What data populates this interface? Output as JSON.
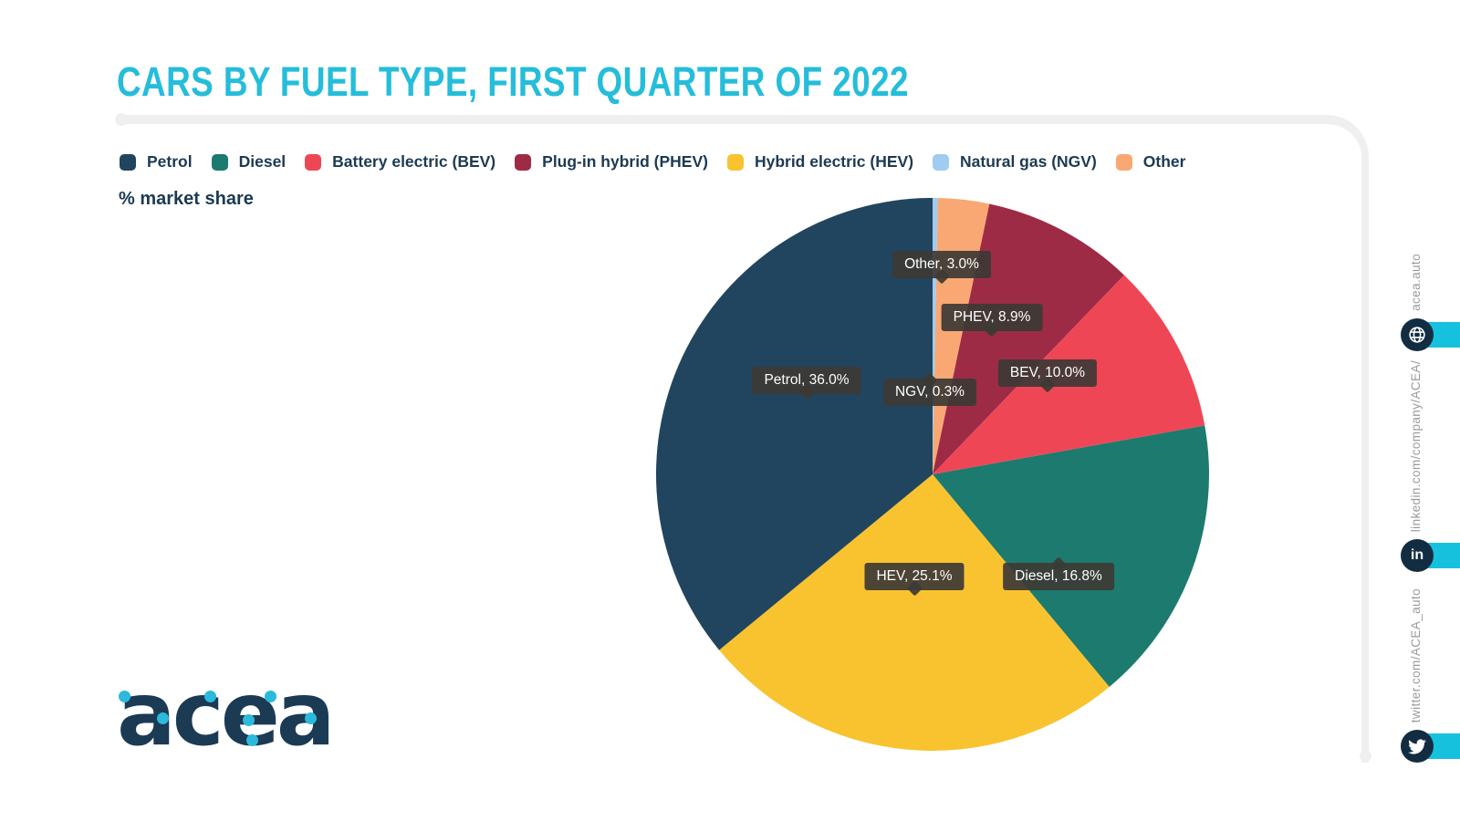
{
  "title": "CARS BY FUEL TYPE, FIRST QUARTER OF 2022",
  "subtitle": "% market share",
  "colors": {
    "title_accent": "#25bdda",
    "text_navy": "#1c3a52",
    "frame_gray": "#efefef",
    "callout_bg": "#3d3935",
    "rail_band_cyan": "#16c1de",
    "rail_circle_navy": "#122c42",
    "rail_text_gray": "#9b9b9b",
    "logo_navy": "#1b3a54",
    "logo_dot_cyan": "#2cb9dc"
  },
  "legend": [
    {
      "label": "Petrol",
      "color": "#22455f"
    },
    {
      "label": "Diesel",
      "color": "#1d7a6e"
    },
    {
      "label": "Battery electric (BEV)",
      "color": "#ef4656"
    },
    {
      "label": "Plug-in hybrid (PHEV)",
      "color": "#9e2b45"
    },
    {
      "label": "Hybrid electric (HEV)",
      "color": "#f8c32e"
    },
    {
      "label": "Natural gas (NGV)",
      "color": "#9fccf0"
    },
    {
      "label": "Other",
      "color": "#f9a873"
    }
  ],
  "chart_data": {
    "type": "pie",
    "title": "Cars by fuel type, first quarter of 2022",
    "unit": "% market share",
    "start_angle_deg": 0,
    "direction": "clockwise",
    "slices": [
      {
        "label": "NGV",
        "legend_label": "Natural gas (NGV)",
        "value": 0.3,
        "color": "#9fccf0"
      },
      {
        "label": "Other",
        "legend_label": "Other",
        "value": 3.0,
        "color": "#f9a873"
      },
      {
        "label": "PHEV",
        "legend_label": "Plug-in hybrid (PHEV)",
        "value": 8.9,
        "color": "#9e2b45"
      },
      {
        "label": "BEV",
        "legend_label": "Battery electric (BEV)",
        "value": 10.0,
        "color": "#ef4656"
      },
      {
        "label": "Diesel",
        "legend_label": "Diesel",
        "value": 16.8,
        "color": "#1d7a6e"
      },
      {
        "label": "HEV",
        "legend_label": "Hybrid electric (HEV)",
        "value": 25.1,
        "color": "#f8c32e"
      },
      {
        "label": "Petrol",
        "legend_label": "Petrol",
        "value": 36.0,
        "color": "#22455f"
      }
    ],
    "callouts": [
      {
        "slice": "Petrol",
        "text": "Petrol, 36.0%"
      },
      {
        "slice": "Diesel",
        "text": "Diesel, 16.8%"
      },
      {
        "slice": "BEV",
        "text": "BEV, 10.0%"
      },
      {
        "slice": "PHEV",
        "text": "PHEV, 8.9%"
      },
      {
        "slice": "HEV",
        "text": "HEV, 25.1%"
      },
      {
        "slice": "NGV",
        "text": "NGV, 0.3%"
      },
      {
        "slice": "Other",
        "text": "Other, 3.0%"
      }
    ]
  },
  "logo": {
    "text": "acea"
  },
  "sidebar": {
    "links": [
      {
        "id": "website",
        "label": "acea.auto",
        "icon": "globe-icon"
      },
      {
        "id": "linkedin",
        "label": "linkedin.com/company/ACEA/",
        "icon": "linkedin-icon"
      },
      {
        "id": "twitter",
        "label": "twitter.com/ACEA_auto",
        "icon": "twitter-icon"
      }
    ]
  }
}
